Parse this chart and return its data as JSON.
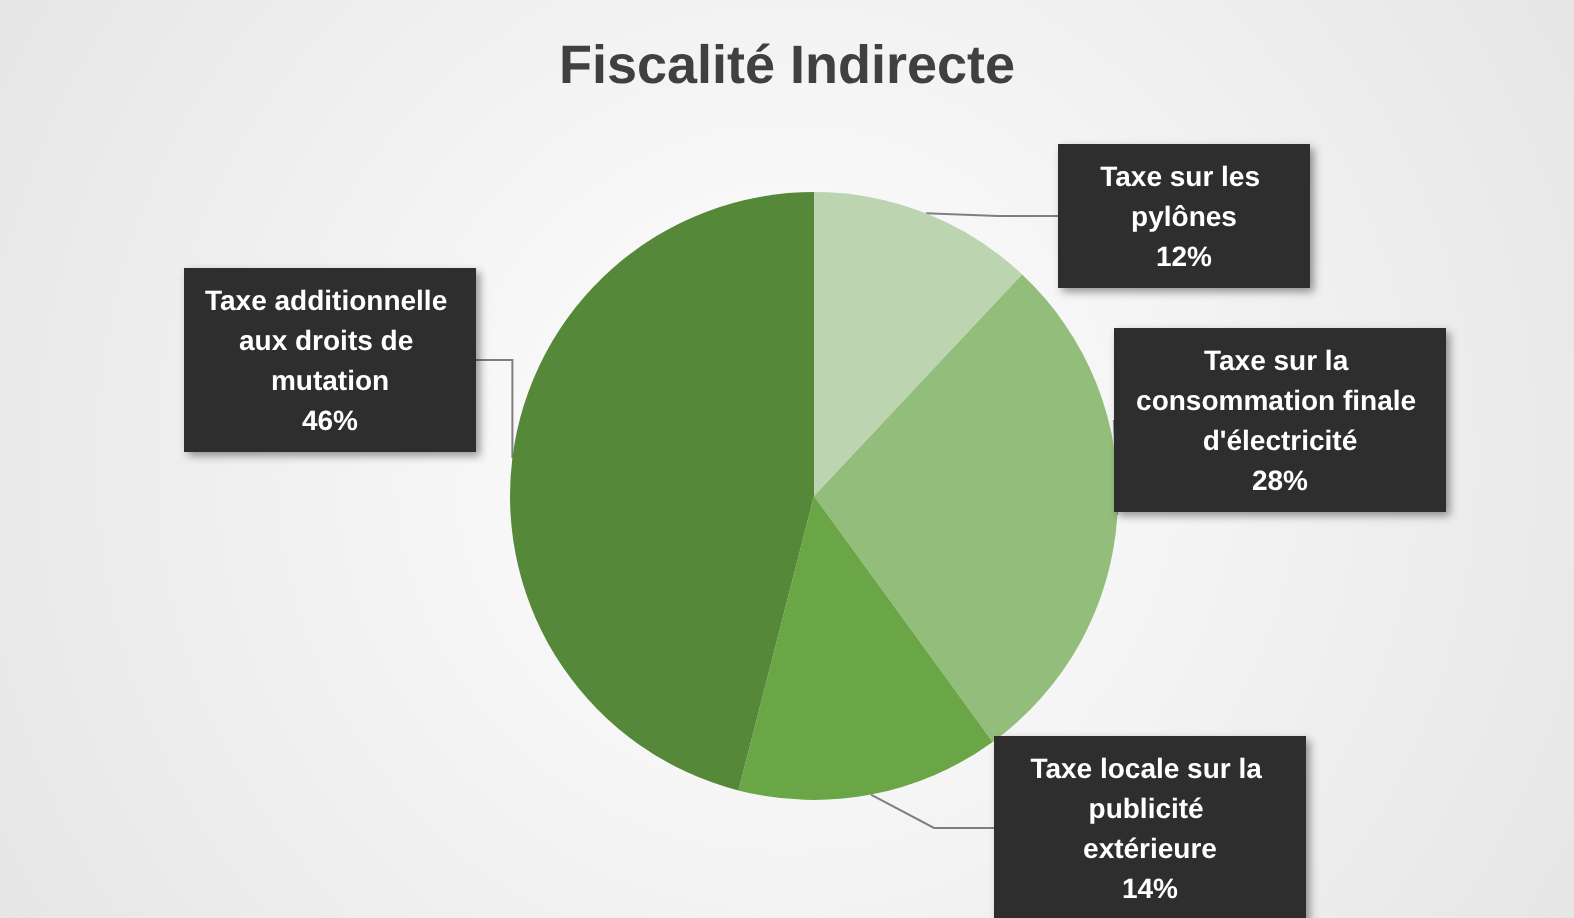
{
  "chart_data": {
    "type": "pie",
    "title": "Fiscalité Indirecte",
    "categories": [
      "Taxe sur les pylônes",
      "Taxe sur la consommation finale d'électricité",
      "Taxe locale sur la publicité extérieure",
      "Taxe additionnelle aux droits de mutation"
    ],
    "values": [
      12,
      28,
      14,
      46
    ],
    "value_labels": [
      "12%",
      "28%",
      "14%",
      "46%"
    ],
    "colors": [
      "#bcd5b0",
      "#92bd7a",
      "#6aa546",
      "#558838"
    ],
    "legend": false
  }
}
